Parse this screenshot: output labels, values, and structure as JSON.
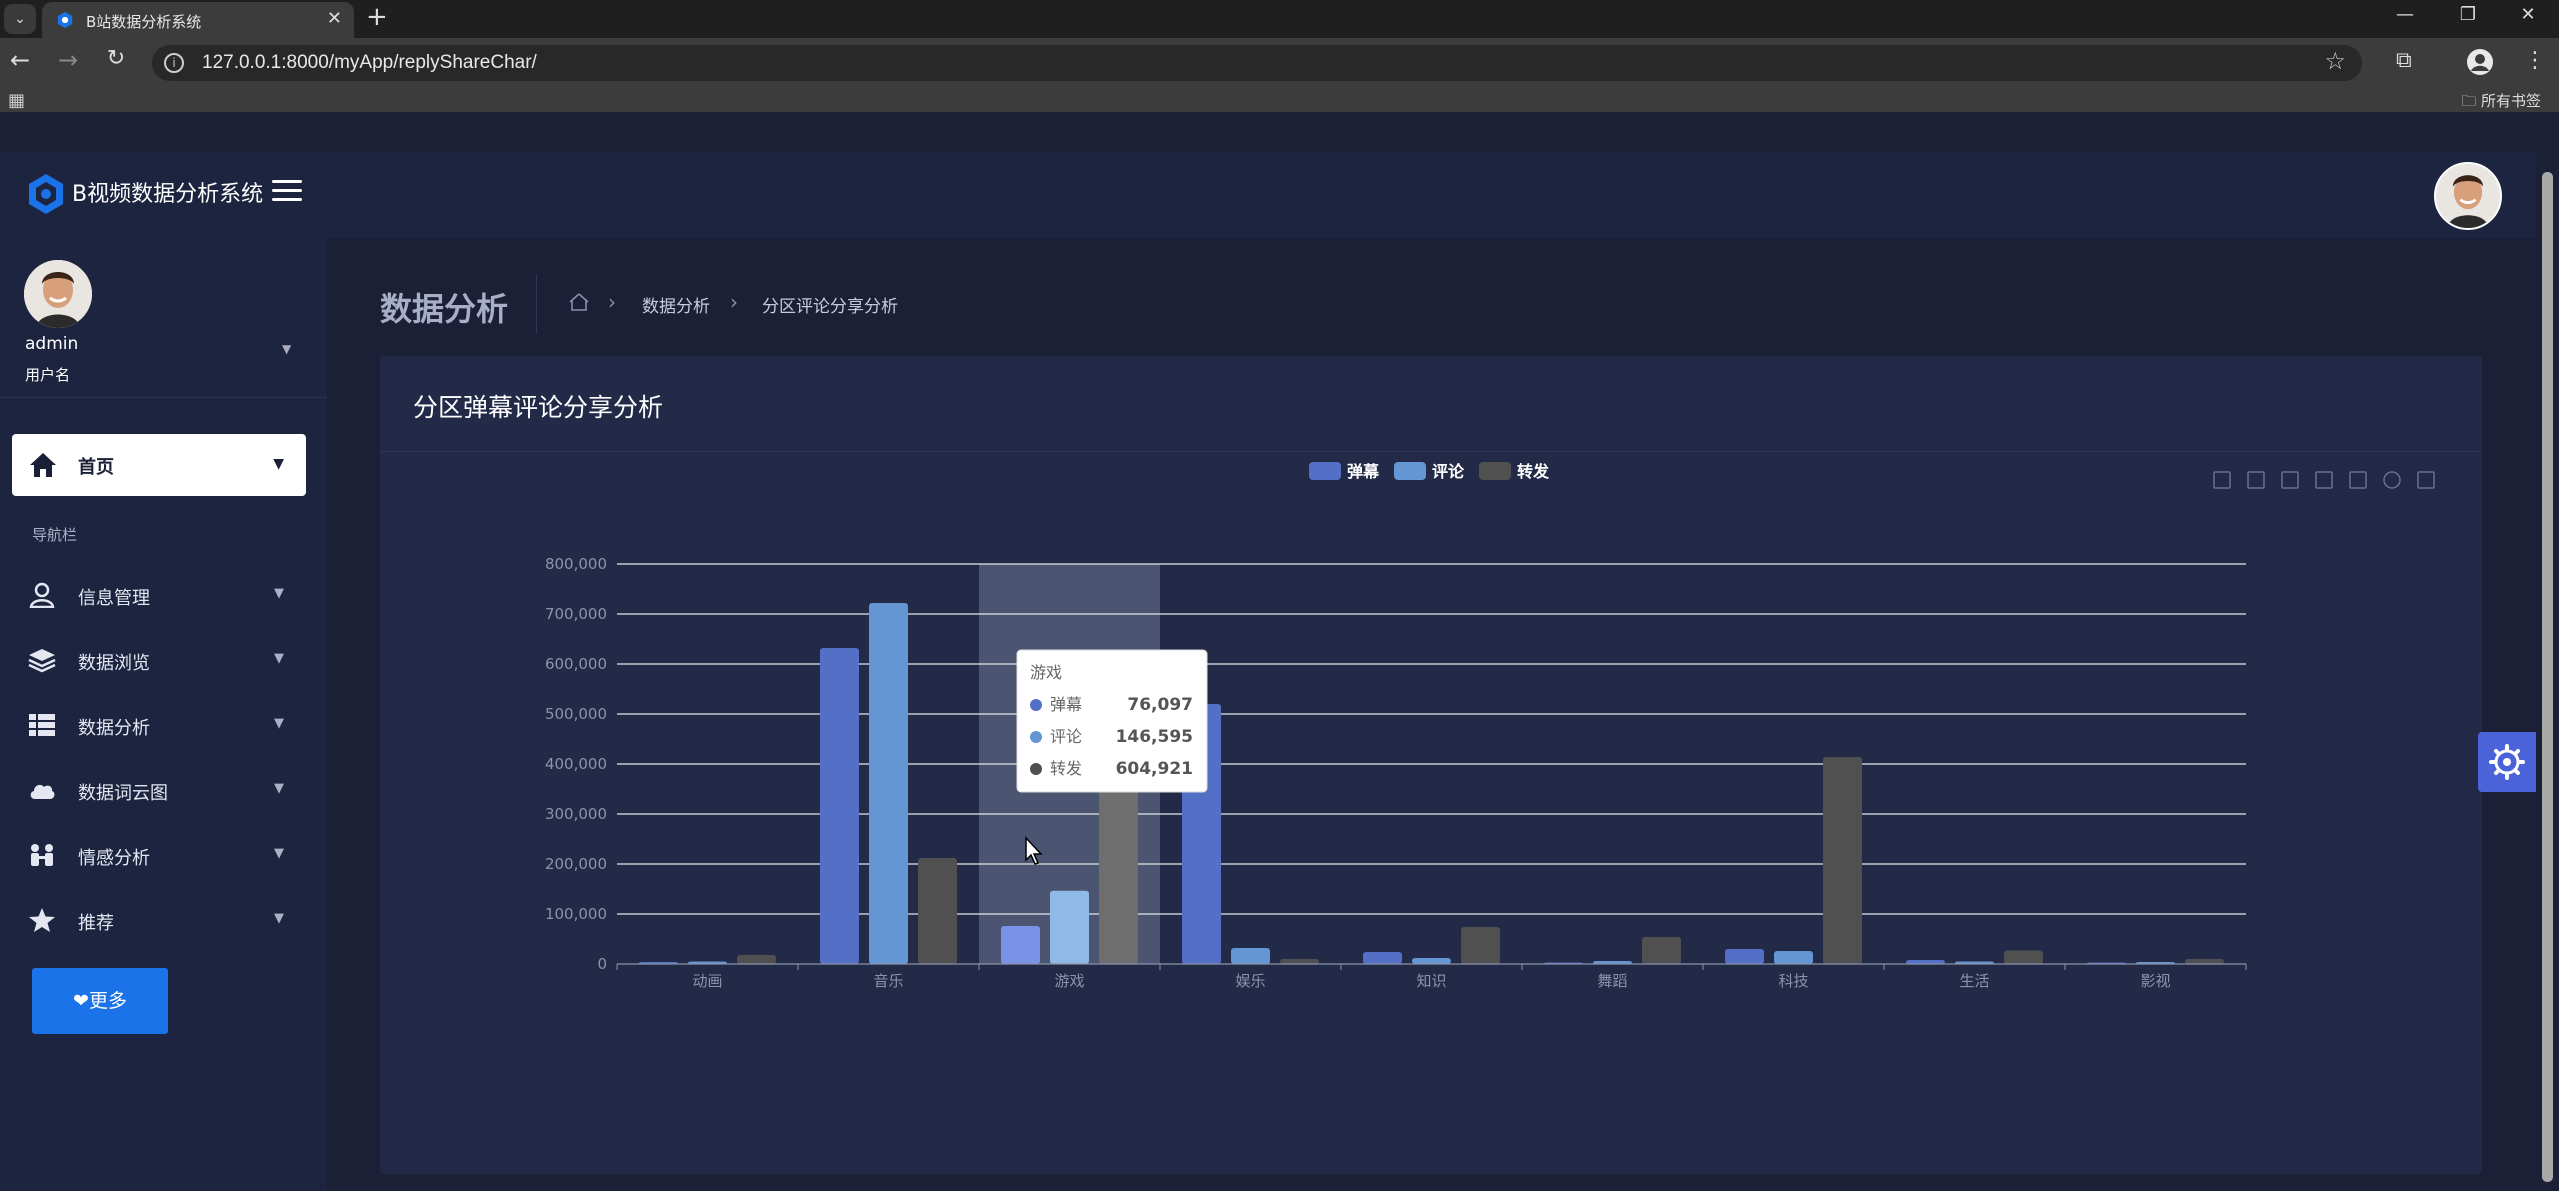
{
  "browser": {
    "tab_title": "B站数据分析系统",
    "url": "127.0.0.1:8000/myApp/replyShareChar/",
    "bookmarks_label": "所有书签"
  },
  "sidebar": {
    "brand": "B视频数据分析系统",
    "user_name": "admin",
    "user_role": "用户名",
    "home_label": "首页",
    "nav_header": "导航栏",
    "items": [
      {
        "label": "信息管理",
        "icon": "user-icon"
      },
      {
        "label": "数据浏览",
        "icon": "layers-icon"
      },
      {
        "label": "数据分析",
        "icon": "table-icon"
      },
      {
        "label": "数据词云图",
        "icon": "cloud-icon"
      },
      {
        "label": "情感分析",
        "icon": "people-icon"
      },
      {
        "label": "推荐",
        "icon": "star-icon"
      }
    ],
    "more_label": "更多"
  },
  "header": {
    "page_title": "数据分析",
    "breadcrumb": [
      "数据分析",
      "分区评论分享分析"
    ]
  },
  "card": {
    "title": "分区弹幕评论分享分析"
  },
  "colors": {
    "danmu": "#5470c6",
    "comment": "#6396d3",
    "share": "#505050"
  },
  "chart_data": {
    "type": "bar",
    "title": "",
    "categories": [
      "动画",
      "音乐",
      "游戏",
      "娱乐",
      "知识",
      "舞蹈",
      "科技",
      "生活",
      "影视"
    ],
    "series": [
      {
        "name": "弹幕",
        "values": [
          4000,
          632000,
          76097,
          520000,
          24000,
          3000,
          30000,
          8000,
          3000
        ]
      },
      {
        "name": "评论",
        "values": [
          5000,
          722000,
          146595,
          32000,
          12000,
          6000,
          26000,
          5000,
          4000
        ]
      },
      {
        "name": "转发",
        "values": [
          18000,
          212000,
          604921,
          10000,
          74000,
          54000,
          414000,
          27000,
          10000
        ]
      }
    ],
    "ylim": [
      0,
      800000
    ],
    "yticks": [
      "0",
      "100,000",
      "200,000",
      "300,000",
      "400,000",
      "500,000",
      "600,000",
      "700,000",
      "800,000"
    ],
    "legend_position": "top-center",
    "grid": true,
    "highlighted_category_index": 2,
    "tooltip": {
      "title": "游戏",
      "rows": [
        {
          "name": "弹幕",
          "value": "76,097"
        },
        {
          "name": "评论",
          "value": "146,595"
        },
        {
          "name": "转发",
          "value": "604,921"
        }
      ]
    }
  }
}
